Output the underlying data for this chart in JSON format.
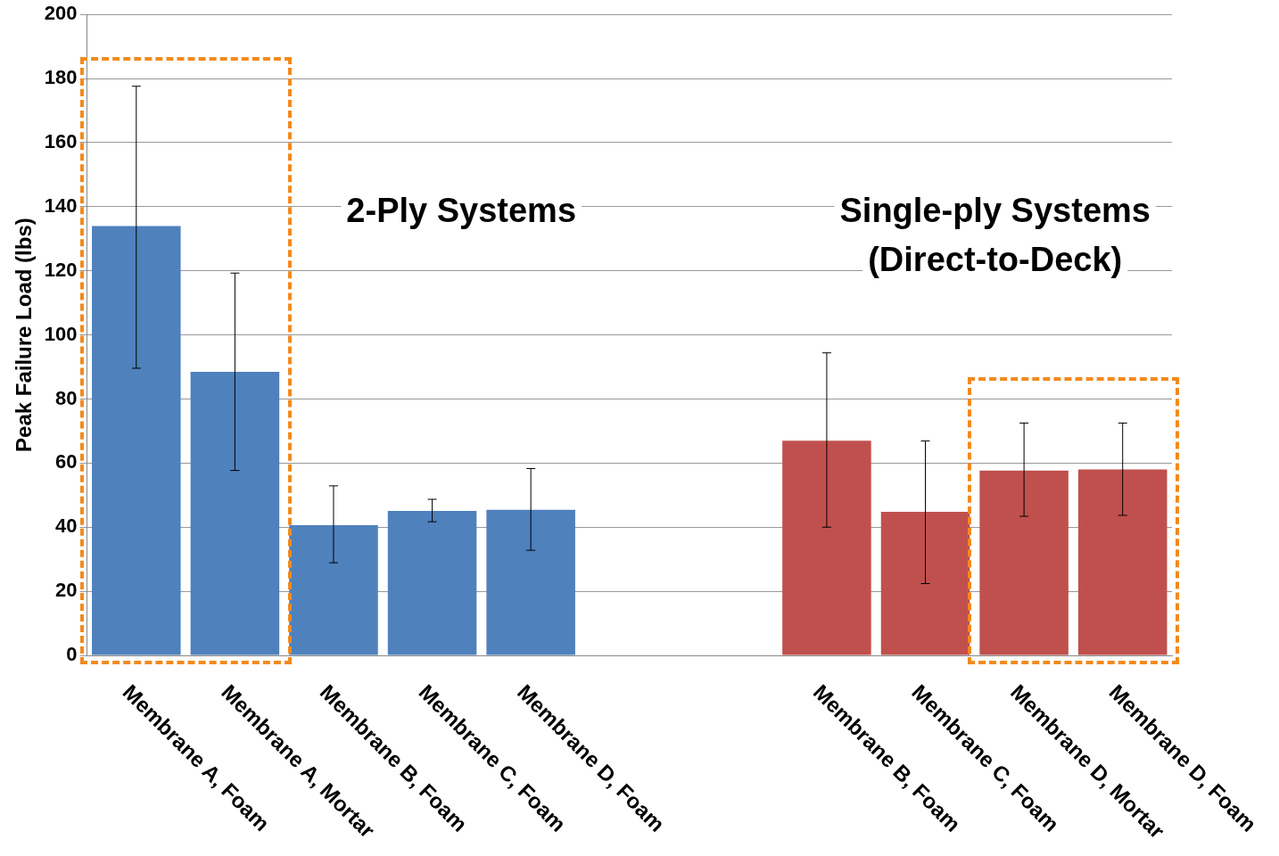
{
  "chart_data": {
    "type": "bar",
    "ylabel": "Peak Failure Load (lbs)",
    "categories": [
      "Membrane A, Foam",
      "Membrane A, Mortar",
      "Membrane B, Foam",
      "Membrane C, Foam",
      "Membrane D, Foam",
      null,
      null,
      "Membrane B, Foam",
      "Membrane C, Foam",
      "Membrane D, Mortar",
      "Membrane D, Foam"
    ],
    "values": [
      134,
      88.5,
      40.6,
      45.1,
      45.4,
      null,
      null,
      67,
      44.8,
      57.7,
      58
    ],
    "colors": [
      "#4f81bd",
      "#4f81bd",
      "#4f81bd",
      "#4f81bd",
      "#4f81bd",
      null,
      null,
      "#c0504d",
      "#c0504d",
      "#c0504d",
      "#c0504d"
    ],
    "errors": [
      [
        89.6,
        177.6
      ],
      [
        57.7,
        119.3
      ],
      [
        28.9,
        52.9
      ],
      [
        41.7,
        48.7
      ],
      [
        32.8,
        58.3
      ],
      null,
      null,
      [
        40,
        94.4
      ],
      [
        22.4,
        66.9
      ],
      [
        43.4,
        72.5
      ],
      [
        43.7,
        72.5
      ]
    ],
    "ylim": [
      0,
      200
    ],
    "yticks": [
      0,
      20,
      40,
      60,
      80,
      100,
      120,
      140,
      160,
      180,
      200
    ],
    "grid": "y",
    "annotations": [
      "2-Ply Systems",
      "Single-ply Systems\n(Direct-to-Deck)"
    ]
  }
}
